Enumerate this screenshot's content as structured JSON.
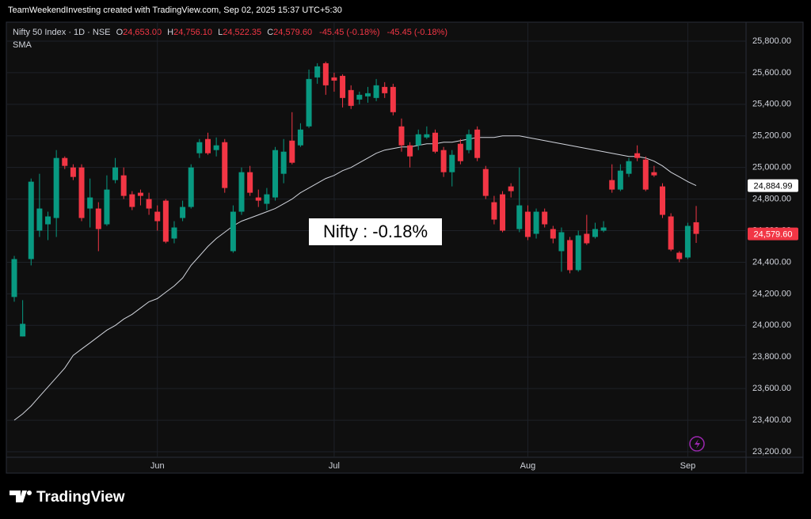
{
  "header": {
    "credit": "TeamWeekendInvesting created with TradingView.com, Sep 02, 2025 15:37 UTC+5:30"
  },
  "legend": {
    "symbol": "Nifty 50 Index · 1D · NSE",
    "o_key": "O",
    "o": "24,653.00",
    "h_key": "H",
    "h": "24,756.10",
    "l_key": "L",
    "l": "24,522.35",
    "c_key": "C",
    "c": "24,579.60",
    "change": "-45.45 (-0.18%)",
    "change2": "-45.45 (-0.18%)",
    "indicator": "SMA"
  },
  "footer": {
    "logo": "TradingView"
  },
  "chart_data": {
    "type": "candlestick",
    "annotation": "Nifty : -0.18%",
    "categories": [
      null,
      null,
      null,
      null,
      null,
      null,
      null,
      null,
      null,
      null,
      null,
      null,
      null,
      null,
      null,
      null,
      null,
      "Jun",
      null,
      null,
      null,
      null,
      null,
      null,
      null,
      null,
      null,
      null,
      null,
      null,
      null,
      null,
      null,
      null,
      null,
      null,
      null,
      null,
      "Jul",
      null,
      null,
      null,
      null,
      null,
      null,
      null,
      null,
      null,
      null,
      null,
      null,
      null,
      null,
      null,
      null,
      null,
      null,
      null,
      null,
      null,
      null,
      "Aug",
      null,
      null,
      null,
      null,
      null,
      null,
      null,
      null,
      null,
      null,
      null,
      null,
      null,
      null,
      null,
      null,
      null,
      null,
      "Sep",
      null
    ],
    "up_color": "#089981",
    "down_color": "#f23645",
    "open": [
      24180,
      23930,
      24420,
      24600,
      24640,
      24680,
      25060,
      25000,
      25000,
      24740,
      24740,
      24640,
      24920,
      24950,
      24830,
      24840,
      24800,
      24720,
      24790,
      24550,
      24680,
      24750,
      25090,
      25180,
      25110,
      25160,
      24470,
      24720,
      24970,
      24810,
      24770,
      24810,
      24960,
      25170,
      25140,
      25260,
      25570,
      25660,
      25570,
      25580,
      25490,
      25430,
      25450,
      25440,
      25510,
      25510,
      25260,
      25140,
      25140,
      25190,
      25220,
      25110,
      24970,
      25150,
      25110,
      25240,
      24990,
      24780,
      24830,
      24880,
      24610,
      24720,
      24580,
      24720,
      24610,
      24470,
      24540,
      24350,
      24580,
      24560,
      24600,
      24920,
      24860,
      24960,
      25090,
      25050,
      24970,
      24880,
      24690,
      24460,
      24430,
      24653
    ],
    "high": [
      24440,
      24160,
      24930,
      24960,
      24720,
      25110,
      25070,
      25020,
      25020,
      24930,
      24780,
      24950,
      25060,
      25000,
      24850,
      24860,
      24840,
      24760,
      24800,
      24660,
      24790,
      25020,
      25180,
      25220,
      25190,
      25180,
      24760,
      25000,
      25010,
      24860,
      24870,
      25130,
      25180,
      25350,
      25280,
      25620,
      25660,
      25670,
      25600,
      25590,
      25520,
      25480,
      25510,
      25560,
      25540,
      25530,
      25310,
      25160,
      25240,
      25260,
      25240,
      25130,
      25110,
      25180,
      25240,
      25260,
      25010,
      24820,
      24850,
      24900,
      25000,
      24760,
      24740,
      24740,
      24630,
      24620,
      24560,
      24600,
      24700,
      24650,
      24660,
      25020,
      25020,
      25060,
      25140,
      25070,
      25010,
      24900,
      24710,
      24470,
      24650,
      24756.1
    ],
    "low": [
      24150,
      23930,
      24380,
      24560,
      24540,
      24560,
      24990,
      24920,
      24660,
      24620,
      24470,
      24630,
      24900,
      24800,
      24730,
      24760,
      24700,
      24600,
      24520,
      24520,
      24660,
      24740,
      25060,
      25080,
      25070,
      24840,
      24460,
      24700,
      24820,
      24750,
      24730,
      24790,
      24900,
      25020,
      25130,
      25250,
      25530,
      25460,
      25480,
      25380,
      25370,
      25400,
      25410,
      25420,
      25440,
      25330,
      25100,
      25000,
      25110,
      25180,
      25090,
      24940,
      24880,
      25020,
      25090,
      25040,
      24800,
      24640,
      24590,
      24810,
      24590,
      24540,
      24550,
      24620,
      24520,
      24340,
      24330,
      24340,
      24510,
      24550,
      24590,
      24840,
      24850,
      24940,
      25040,
      24850,
      24940,
      24680,
      24470,
      24400,
      24420,
      24522.35
    ],
    "close": [
      24420,
      24010,
      24910,
      24740,
      24690,
      25060,
      25010,
      24940,
      24680,
      24810,
      24610,
      24860,
      25000,
      24820,
      24750,
      24820,
      24740,
      24660,
      24530,
      24620,
      24750,
      25000,
      25160,
      25090,
      25140,
      24870,
      24720,
      24970,
      24840,
      24790,
      24830,
      25110,
      25100,
      25030,
      25240,
      25560,
      25640,
      25520,
      25550,
      25440,
      25390,
      25460,
      25470,
      25520,
      25470,
      25350,
      25140,
      25070,
      25210,
      25210,
      25100,
      24970,
      25080,
      25040,
      25210,
      25060,
      24820,
      24670,
      24600,
      24850,
      24760,
      24560,
      24720,
      24640,
      24550,
      24590,
      24350,
      24570,
      24520,
      24610,
      24620,
      24860,
      24980,
      25040,
      25060,
      24860,
      24950,
      24700,
      24480,
      24420,
      24630,
      24579.6
    ],
    "sma": {
      "name": "SMA",
      "color": "#d1d4dc",
      "values": [
        23400,
        23440,
        23490,
        23550,
        23610,
        23670,
        23730,
        23810,
        23850,
        23890,
        23930,
        23970,
        24000,
        24040,
        24070,
        24110,
        24150,
        24170,
        24210,
        24250,
        24300,
        24380,
        24440,
        24500,
        24550,
        24590,
        24630,
        24660,
        24680,
        24700,
        24720,
        24740,
        24770,
        24800,
        24840,
        24870,
        24900,
        24930,
        24950,
        24980,
        25000,
        25030,
        25060,
        25090,
        25110,
        25120,
        25130,
        25130,
        25140,
        25150,
        25150,
        25160,
        25160,
        25170,
        25180,
        25190,
        25190,
        25190,
        25200,
        25200,
        25200,
        25190,
        25180,
        25170,
        25160,
        25150,
        25140,
        25130,
        25120,
        25110,
        25100,
        25090,
        25080,
        25070,
        25070,
        25060,
        25040,
        25010,
        24970,
        24940,
        24910,
        24884.99
      ]
    },
    "price_labels": [
      {
        "value": 24884.99,
        "label": "24,884.99"
      },
      {
        "value": 24579.6,
        "label": "24,579.60"
      }
    ],
    "ylim": [
      23165,
      25910
    ],
    "yticks": [
      {
        "value": 23200,
        "label": "23,200.00"
      },
      {
        "value": 23400,
        "label": "23,400.00"
      },
      {
        "value": 23600,
        "label": "23,600.00"
      },
      {
        "value": 23800,
        "label": "23,800.00"
      },
      {
        "value": 24000,
        "label": "24,000.00"
      },
      {
        "value": 24200,
        "label": "24,200.00"
      },
      {
        "value": 24400,
        "label": "24,400.00"
      },
      {
        "value": 24600,
        "label": "24,600.00"
      },
      {
        "value": 24800,
        "label": "24,800.00"
      },
      {
        "value": 25000,
        "label": "25,000.00"
      },
      {
        "value": 25200,
        "label": "25,200.00"
      },
      {
        "value": 25400,
        "label": "25,400.00"
      },
      {
        "value": 25600,
        "label": "25,600.00"
      },
      {
        "value": 25800,
        "label": "25,800.00"
      }
    ]
  }
}
